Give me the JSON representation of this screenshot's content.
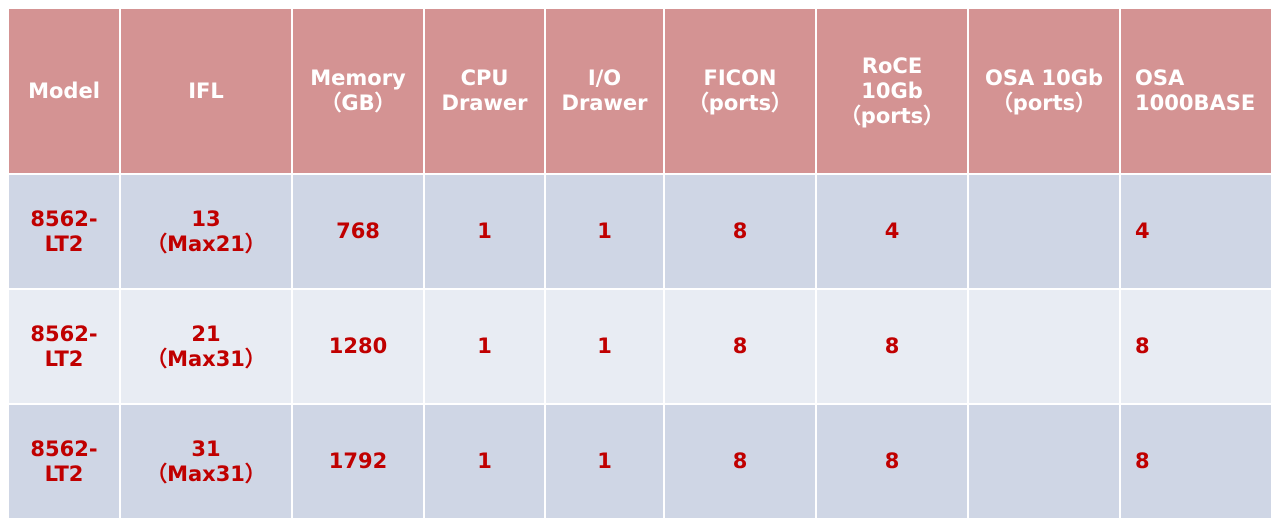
{
  "headers": [
    [
      "Model"
    ],
    [
      "IFL"
    ],
    [
      "Memory",
      "（GB）"
    ],
    [
      "CPU",
      "Drawer"
    ],
    [
      "I/O",
      "Drawer"
    ],
    [
      "FICON",
      "（ports）"
    ],
    [
      "RoCE",
      "10Gb",
      "（ports）"
    ],
    [
      "OSA 10Gb",
      "（ports）"
    ],
    [
      "OSA",
      "1000BASE"
    ]
  ],
  "rows": [
    {
      "model": [
        "8562-",
        "LT2"
      ],
      "ifl": [
        "13",
        "（Max21）"
      ],
      "memory": "768",
      "cpu": "1",
      "io": "1",
      "ficon": "8",
      "roce": "4",
      "osa10": "",
      "osa1000": "4"
    },
    {
      "model": [
        "8562-",
        "LT2"
      ],
      "ifl": [
        "21",
        "（Max31）"
      ],
      "memory": "1280",
      "cpu": "1",
      "io": "1",
      "ficon": "8",
      "roce": "8",
      "osa10": "",
      "osa1000": "8"
    },
    {
      "model": [
        "8562-",
        "LT2"
      ],
      "ifl": [
        "31",
        "（Max31）"
      ],
      "memory": "1792",
      "cpu": "1",
      "io": "1",
      "ficon": "8",
      "roce": "8",
      "osa10": "",
      "osa1000": "8"
    }
  ],
  "colors": {
    "header_bg": "#d49393",
    "row_odd_bg": "#cfd6e5",
    "row_even_bg": "#e8ecf3",
    "cell_text": "#c00000",
    "header_text": "#ffffff"
  }
}
